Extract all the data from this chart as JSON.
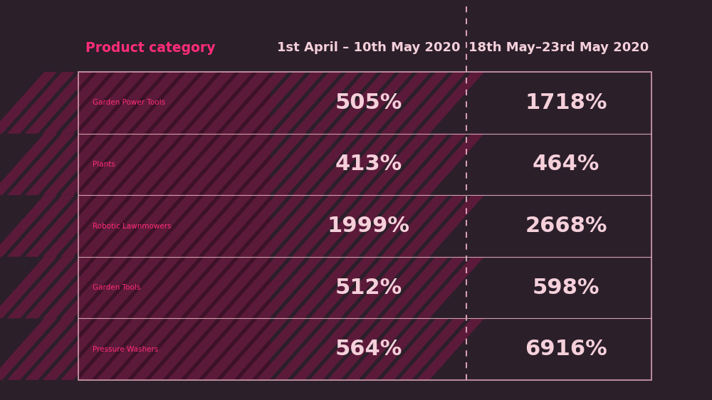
{
  "background_color": "#2b1f2a",
  "table_bg_color": "#2d1f2b",
  "stripe_color1": "#5c1a3a",
  "stripe_color2": "#3d1228",
  "border_color": "#d4a0b0",
  "dashed_line_color": "#d4a0b0",
  "header_category_color": "#ff2d78",
  "header_text_color": "#f5d0da",
  "category_label_color": "#ff2d78",
  "value_color": "#f5d0da",
  "col_header": [
    "Product category",
    "1st April – 10th May 2020",
    "18th May–23rd May 2020"
  ],
  "rows": [
    {
      "category": "Garden Power Tools",
      "val1": "505%",
      "val2": "1718%"
    },
    {
      "category": "Plants",
      "val1": "413%",
      "val2": "464%"
    },
    {
      "category": "Robotic Lawnmowers",
      "val1": "1999%",
      "val2": "2668%"
    },
    {
      "category": "Garden Tools",
      "val1": "512%",
      "val2": "598%"
    },
    {
      "category": "Pressure Washers",
      "val1": "564%",
      "val2": "6916%"
    }
  ],
  "figsize": [
    10,
    5.62
  ],
  "dpi": 100
}
